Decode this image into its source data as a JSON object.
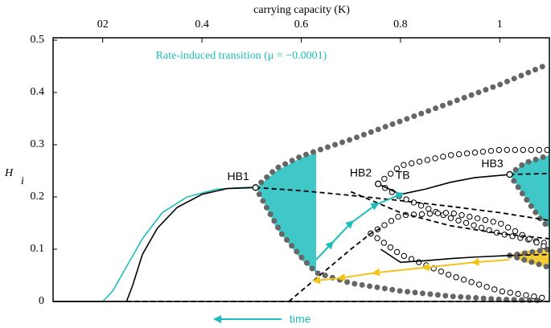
{
  "chart_data": {
    "type": "line",
    "title": "carrying capacity (K)",
    "ylabel": "H",
    "ylabel_sub": "i",
    "annotation": "Rate-induced transition (μ = −0.0001)",
    "time_label": "time",
    "tb_label": "TB",
    "xlim": [
      0.1,
      1.1
    ],
    "ylim": [
      0,
      0.5
    ],
    "xticks": [
      {
        "value": 0.2,
        "label": "02"
      },
      0.4,
      0.6,
      0.8,
      1
    ],
    "yticks": [
      0,
      0.1,
      0.2,
      0.3,
      0.4,
      0.5
    ],
    "points": [
      {
        "label": "HB1",
        "x": 0.508,
        "y": 0.218
      },
      {
        "label": "HB2",
        "x": 0.755,
        "y": 0.225
      },
      {
        "label": "HB3",
        "x": 1.02,
        "y": 0.243
      }
    ],
    "bands": [
      {
        "color": "#1ebdbd",
        "x": [
          0.51,
          0.55,
          0.6,
          0.63
        ],
        "values": [
          0.218,
          0.25,
          0.275,
          0.285
        ],
        "lower": [
          0.218,
          0.14,
          0.08,
          0.055
        ]
      },
      {
        "color": "#1ebdbd",
        "x": [
          1.02,
          1.05,
          1.1
        ],
        "values": [
          0.243,
          0.265,
          0.28
        ],
        "lower": [
          0.243,
          0.2,
          0.14
        ]
      },
      {
        "color": "#f2c318",
        "x": [
          1.02,
          1.05,
          1.1
        ],
        "values": [
          0.088,
          0.097,
          0.1
        ],
        "lower": [
          0.088,
          0.075,
          0.065
        ]
      }
    ],
    "series": [
      {
        "style": "dots",
        "color": "#666666",
        "x": [
          0.508,
          0.55,
          0.6,
          0.63,
          0.7,
          0.8,
          0.9,
          1.0,
          1.1
        ],
        "values": [
          0.218,
          0.255,
          0.278,
          0.288,
          0.31,
          0.345,
          0.38,
          0.415,
          0.455
        ]
      },
      {
        "style": "dots",
        "color": "#666666",
        "x": [
          0.508,
          0.53,
          0.56,
          0.6,
          0.63,
          0.7,
          0.8,
          0.9,
          1.0,
          1.08
        ],
        "values": [
          0.218,
          0.18,
          0.13,
          0.085,
          0.055,
          0.035,
          0.02,
          0.01,
          0.004,
          0.002
        ]
      },
      {
        "style": "dots",
        "color": "#666666",
        "x": [
          1.02,
          1.05,
          1.1
        ],
        "values": [
          0.243,
          0.265,
          0.28
        ]
      },
      {
        "style": "dots",
        "color": "#666666",
        "x": [
          1.02,
          1.05,
          1.08,
          1.1
        ],
        "values": [
          0.243,
          0.2,
          0.16,
          0.14
        ]
      },
      {
        "style": "dots",
        "color": "#666666",
        "x": [
          1.02,
          1.1
        ],
        "values": [
          0.088,
          0.1
        ]
      },
      {
        "style": "dots",
        "color": "#666666",
        "x": [
          1.02,
          1.1
        ],
        "values": [
          0.088,
          0.065
        ]
      },
      {
        "style": "open",
        "color": "#000000",
        "x": [
          0.755,
          0.8,
          0.9,
          1.0,
          1.1
        ],
        "values": [
          0.225,
          0.26,
          0.28,
          0.29,
          0.29
        ]
      },
      {
        "style": "open",
        "color": "#000000",
        "x": [
          0.755,
          0.8,
          0.9,
          1.0,
          1.1
        ],
        "values": [
          0.225,
          0.2,
          0.16,
          0.13,
          0.11
        ]
      },
      {
        "style": "open",
        "color": "#000000",
        "x": [
          0.74,
          0.8,
          0.9,
          1.0,
          1.1
        ],
        "values": [
          0.13,
          0.165,
          0.17,
          0.15,
          0.1
        ]
      },
      {
        "style": "open",
        "color": "#000000",
        "x": [
          0.74,
          0.8,
          0.9,
          1.0,
          1.1
        ],
        "values": [
          0.13,
          0.09,
          0.05,
          0.02,
          0.005
        ]
      },
      {
        "style": "solid",
        "color": "#1ebdbd",
        "x": [
          0.1,
          0.2,
          0.22,
          0.25,
          0.28,
          0.32,
          0.37,
          0.43,
          0.5
        ],
        "values": [
          0,
          0,
          0.02,
          0.07,
          0.12,
          0.17,
          0.2,
          0.215,
          0.219
        ]
      },
      {
        "style": "solid",
        "color": "#000000",
        "x": [
          0.1,
          0.248,
          0.26,
          0.28,
          0.31,
          0.35,
          0.4,
          0.45,
          0.508
        ],
        "values": [
          0,
          0,
          0.03,
          0.09,
          0.14,
          0.18,
          0.205,
          0.216,
          0.218
        ]
      },
      {
        "style": "dashed",
        "color": "#000000",
        "x": [
          0.248,
          1.1
        ],
        "values": [
          0,
          0
        ]
      },
      {
        "style": "dashed",
        "color": "#000000",
        "x": [
          0.508,
          0.6,
          0.7,
          0.8,
          0.9,
          1.0,
          1.1
        ],
        "values": [
          0.218,
          0.212,
          0.203,
          0.193,
          0.182,
          0.17,
          0.155
        ]
      },
      {
        "style": "dashed",
        "color": "#000000",
        "x": [
          0.7,
          0.8,
          0.9,
          1.0,
          1.1
        ],
        "values": [
          0.21,
          0.17,
          0.145,
          0.13,
          0.12
        ]
      },
      {
        "style": "dashed",
        "color": "#000000",
        "x": [
          0.575,
          0.6,
          0.65,
          0.7,
          0.74,
          0.76
        ],
        "values": [
          0,
          0.02,
          0.06,
          0.1,
          0.13,
          0.14
        ]
      },
      {
        "style": "dashed",
        "color": "#000000",
        "x": [
          1.02,
          1.1
        ],
        "values": [
          0.243,
          0.245
        ]
      },
      {
        "style": "dashed",
        "color": "#000000",
        "x": [
          1.02,
          1.1
        ],
        "values": [
          0.088,
          0.09
        ]
      },
      {
        "style": "solid",
        "color": "#000000",
        "x": [
          0.755,
          0.8,
          0.85,
          0.9,
          0.95,
          1.02
        ],
        "values": [
          0.225,
          0.205,
          0.215,
          0.228,
          0.237,
          0.243
        ]
      },
      {
        "style": "solid",
        "color": "#000000",
        "x": [
          0.76,
          0.8,
          0.85,
          0.9,
          0.95,
          1.02
        ],
        "values": [
          0.1,
          0.075,
          0.078,
          0.082,
          0.085,
          0.088
        ]
      },
      {
        "style": "arrow",
        "color": "#1ebdbd",
        "x": [
          0.63,
          0.66,
          0.7,
          0.75,
          0.8
        ],
        "values": [
          0.08,
          0.11,
          0.15,
          0.185,
          0.205
        ]
      },
      {
        "style": "arrow",
        "color": "#f2c318",
        "x": [
          1.02,
          0.95,
          0.85,
          0.75,
          0.68,
          0.63
        ],
        "values": [
          0.08,
          0.075,
          0.065,
          0.055,
          0.045,
          0.04
        ]
      }
    ]
  }
}
